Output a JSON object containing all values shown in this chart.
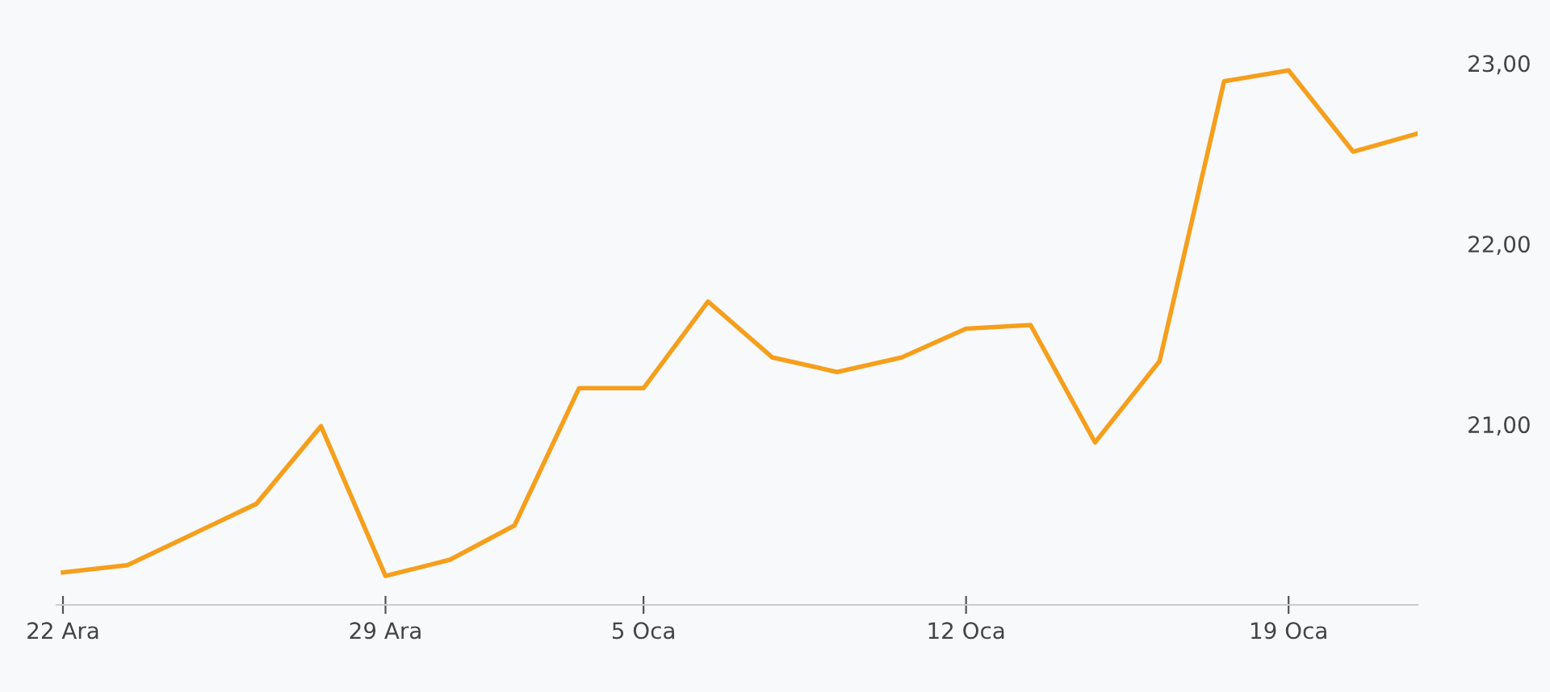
{
  "chart_data": {
    "type": "line",
    "categories": [
      "22 Ara",
      null,
      null,
      null,
      null,
      "29 Ara",
      null,
      null,
      null,
      "5 Oca",
      null,
      null,
      null,
      null,
      "12 Oca",
      null,
      null,
      null,
      null,
      "19 Oca",
      null,
      null
    ],
    "series": [
      {
        "color": "#f59f1c",
        "values": [
          20.18,
          20.22,
          20.39,
          20.56,
          20.99,
          20.16,
          20.25,
          20.44,
          21.2,
          21.2,
          21.68,
          21.37,
          21.29,
          21.37,
          21.53,
          21.55,
          20.9,
          21.35,
          22.9,
          22.96,
          22.51,
          22.61
        ]
      }
    ],
    "ylim": [
      20.0,
      23.35
    ],
    "yticks": [
      {
        "value": 21,
        "label": "21,00"
      },
      {
        "value": 22,
        "label": "22,00"
      },
      {
        "value": 23,
        "label": "23,00"
      }
    ],
    "grid": false,
    "marker": "none",
    "line_style": "solid"
  }
}
